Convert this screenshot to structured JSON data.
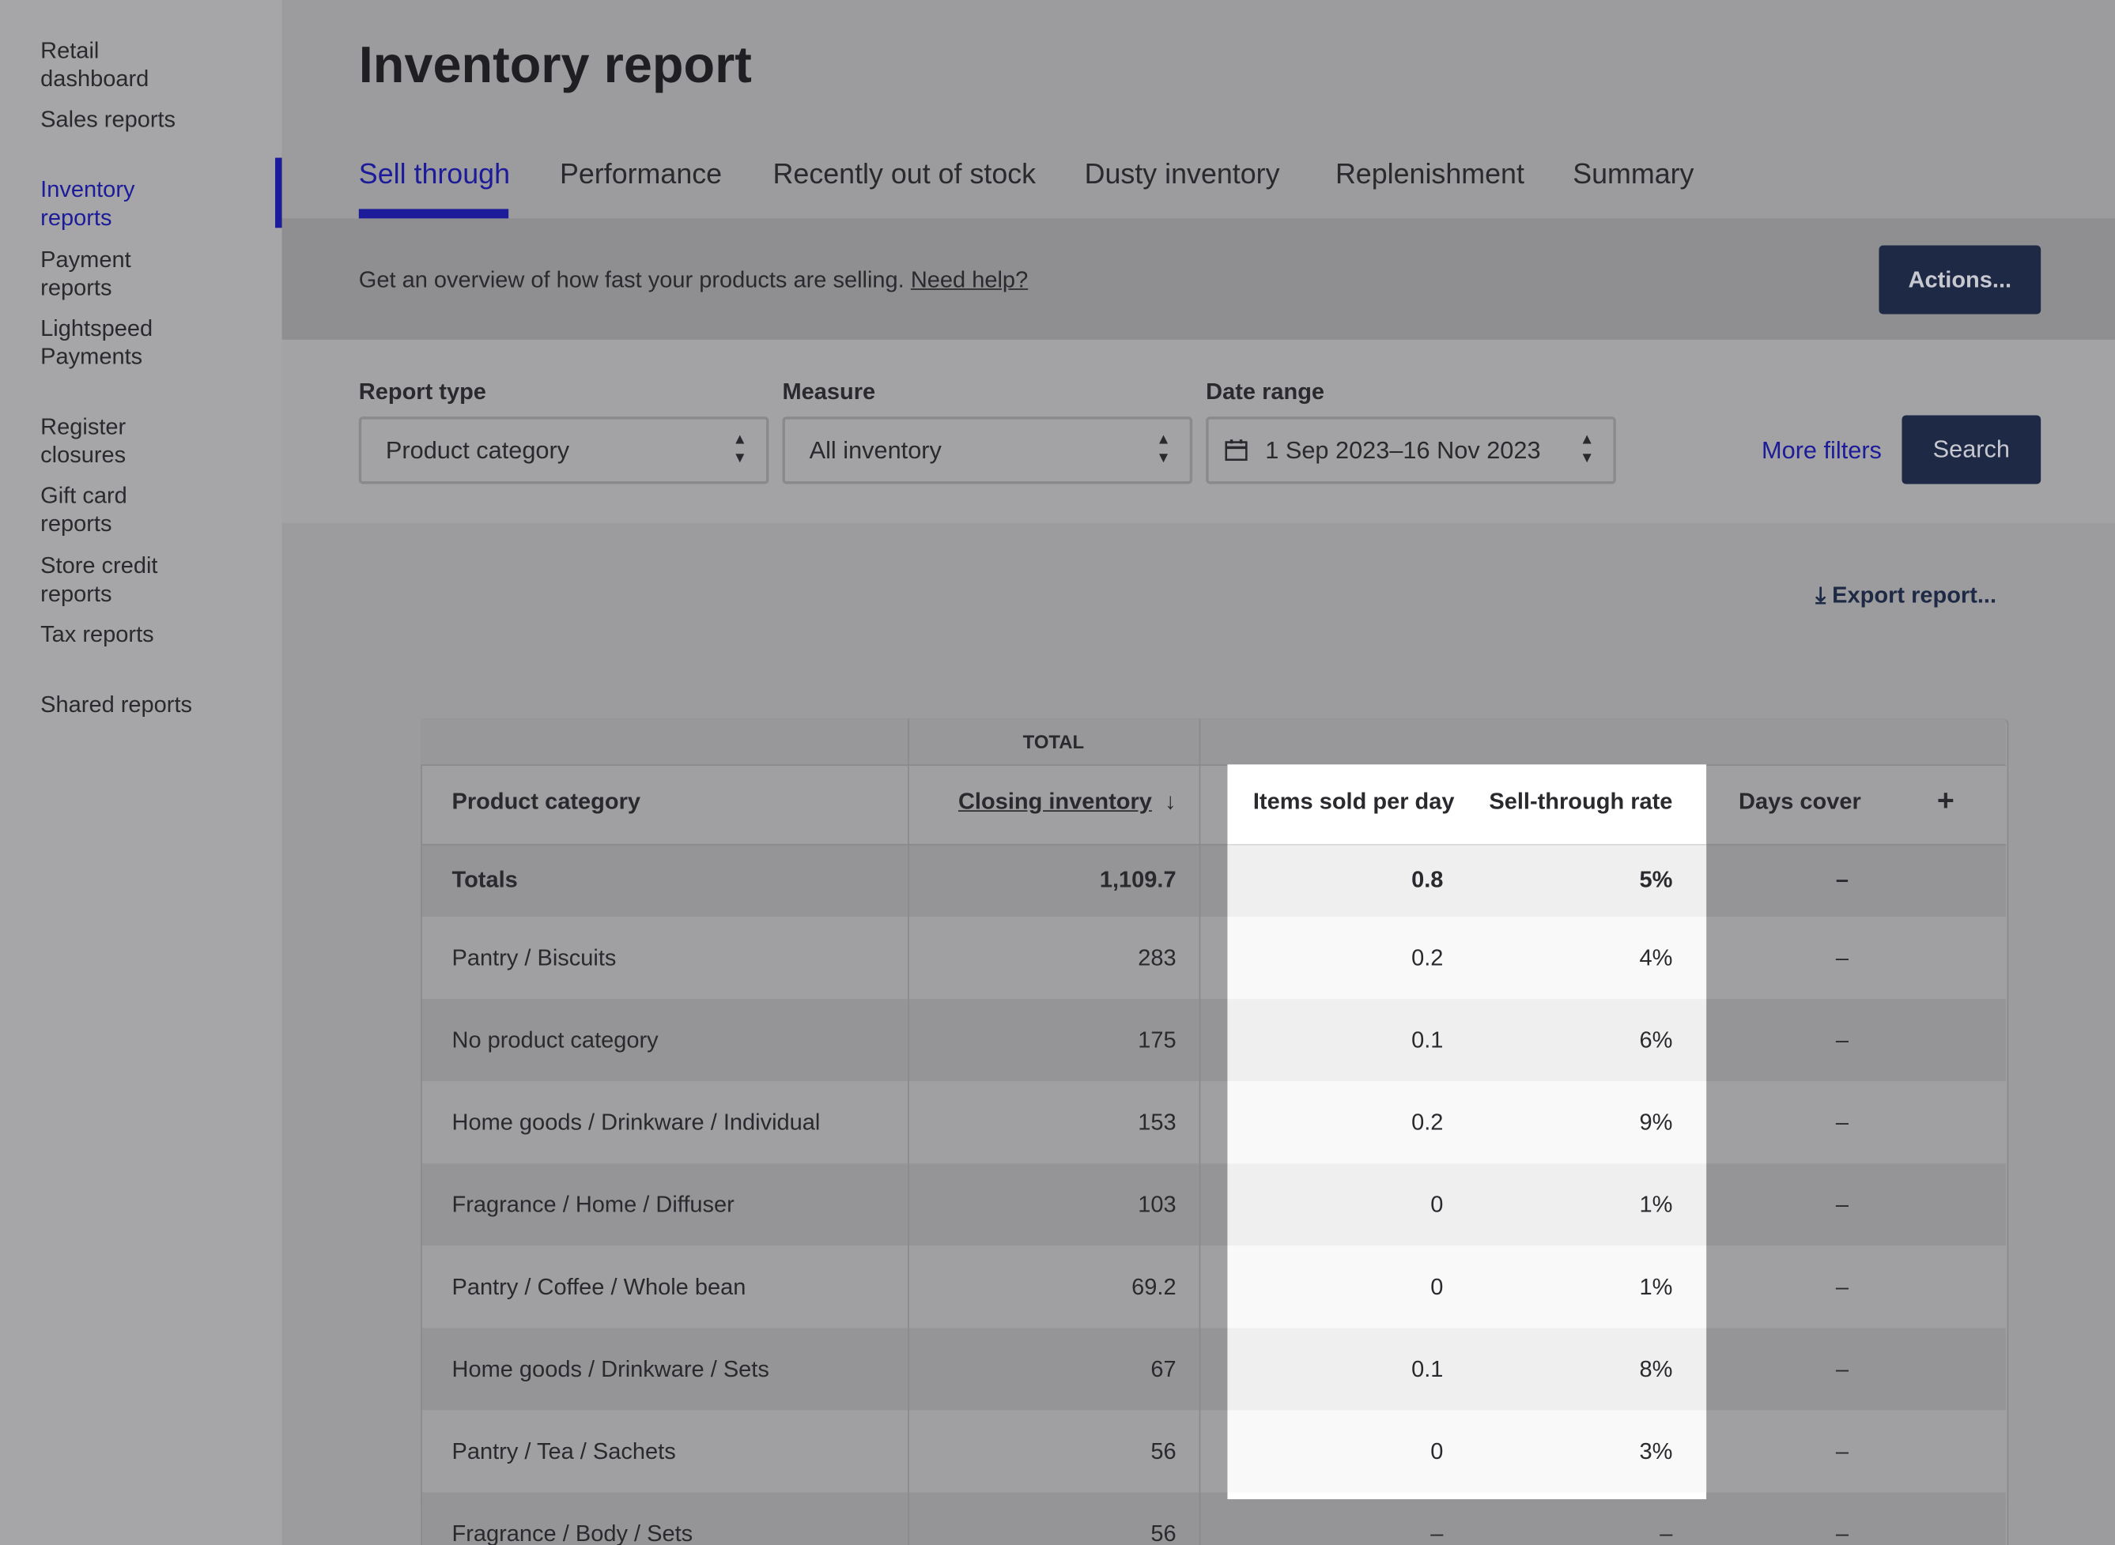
{
  "sidebar": {
    "items": [
      "Retail dashboard",
      "Sales reports",
      "Inventory reports",
      "Payment reports",
      "Lightspeed Payments",
      "Register closures",
      "Gift card reports",
      "Store credit reports",
      "Tax reports",
      "Shared reports"
    ],
    "active": 2
  },
  "header": {
    "title": "Inventory report"
  },
  "tabs": {
    "items": [
      "Sell through",
      "Performance",
      "Recently out of stock",
      "Dusty inventory",
      "Replenishment",
      "Summary"
    ],
    "active": 0
  },
  "banner": {
    "text": "Get an overview of how fast your products are selling.",
    "link": "Need help?",
    "button": "Actions..."
  },
  "filters": {
    "report_type": {
      "label": "Report type",
      "value": "Product category"
    },
    "measure": {
      "label": "Measure",
      "value": "All inventory"
    },
    "date_range": {
      "label": "Date range",
      "value": "1 Sep 2023–16 Nov 2023"
    },
    "more": "More filters",
    "search": "Search"
  },
  "export": "Export report...",
  "table": {
    "group_header": "TOTAL",
    "columns": [
      "Product category",
      "Closing inventory",
      "Items sold per day",
      "Sell-through rate",
      "Days cover",
      "+"
    ],
    "rows": [
      [
        "Totals",
        "1,109.7",
        "0.8",
        "5%",
        "–"
      ],
      [
        "Pantry / Biscuits",
        "283",
        "0.2",
        "4%",
        "–"
      ],
      [
        "No product category",
        "175",
        "0.1",
        "6%",
        "–"
      ],
      [
        "Home goods / Drinkware / Individual",
        "153",
        "0.2",
        "9%",
        "–"
      ],
      [
        "Fragrance / Home / Diffuser",
        "103",
        "0",
        "1%",
        "–"
      ],
      [
        "Pantry / Coffee / Whole bean",
        "69.2",
        "0",
        "1%",
        "–"
      ],
      [
        "Home goods / Drinkware / Sets",
        "67",
        "0.1",
        "8%",
        "–"
      ],
      [
        "Pantry / Tea / Sachets",
        "56",
        "0",
        "3%",
        "–"
      ],
      [
        "Fragrance / Body / Sets",
        "56",
        "–",
        "–",
        "–"
      ]
    ]
  }
}
